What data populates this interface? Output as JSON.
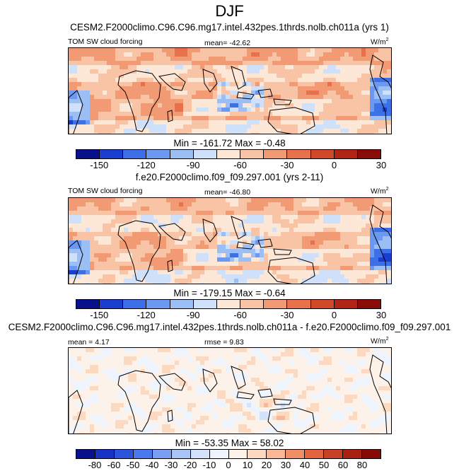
{
  "title": "DJF",
  "colors": {
    "levels12": [
      "#08108c",
      "#1a3fd0",
      "#3d6fe6",
      "#6b98f0",
      "#9bbef5",
      "#cfe0fb",
      "#fde8d8",
      "#f9c4a5",
      "#f29a74",
      "#e8704a",
      "#d04a2a",
      "#b02515",
      "#8a0c08"
    ],
    "levels16": [
      "#08108c",
      "#1732c4",
      "#2a55dc",
      "#4b78ec",
      "#7a9ef3",
      "#a9c4f7",
      "#d4e3fb",
      "#eef4fd",
      "#fdf2ea",
      "#fcd9c1",
      "#f8b795",
      "#f08f66",
      "#e3653f",
      "#c94124",
      "#a82212",
      "#860a06"
    ]
  },
  "panels": [
    {
      "subtitle": "CESM2.F2000climo.C96.C96.mg17.intel.432pes.1thrds.nolb.ch011a (yrs 1)",
      "left_label": "TOM SW cloud forcing",
      "center_label": "mean= -42.62",
      "unit": "W/m",
      "unit_sup": "2",
      "minmax": "Min = -161.72 Max =  -0.48",
      "ticks": [
        "-150",
        "-120",
        "-90",
        "-60",
        "-30",
        "0",
        "30"
      ],
      "mean_value": -42.62,
      "min": -161.72,
      "max": -0.48
    },
    {
      "subtitle": "f.e20.F2000climo.f09_f09.297.001 (yrs 2-11)",
      "left_label": "TOM SW cloud forcing",
      "center_label": "mean= -46.80",
      "unit": "W/m",
      "unit_sup": "2",
      "minmax": "Min = -179.15 Max =  -0.64",
      "ticks": [
        "-150",
        "-120",
        "-90",
        "-60",
        "-30",
        "0",
        "30"
      ],
      "mean_value": -46.8,
      "min": -179.15,
      "max": -0.64
    },
    {
      "subtitle": "CESM2.F2000climo.C96.C96.mg17.intel.432pes.1thrds.nolb.ch011a - f.e20.F2000climo.f09_f09.297.001",
      "left_label": "mean =  4.17",
      "center_label": "rmse =  9.83",
      "unit": "W/m",
      "unit_sup": "2",
      "minmax": "Min = -53.35 Max =  58.02",
      "ticks": [
        "-80",
        "-60",
        "-50",
        "-40",
        "-30",
        "-20",
        "-10",
        "0",
        "10",
        "20",
        "30",
        "40",
        "50",
        "60",
        "80"
      ],
      "mean_value": 4.17,
      "rmse": 9.83,
      "min": -53.35,
      "max": 58.02
    }
  ]
}
